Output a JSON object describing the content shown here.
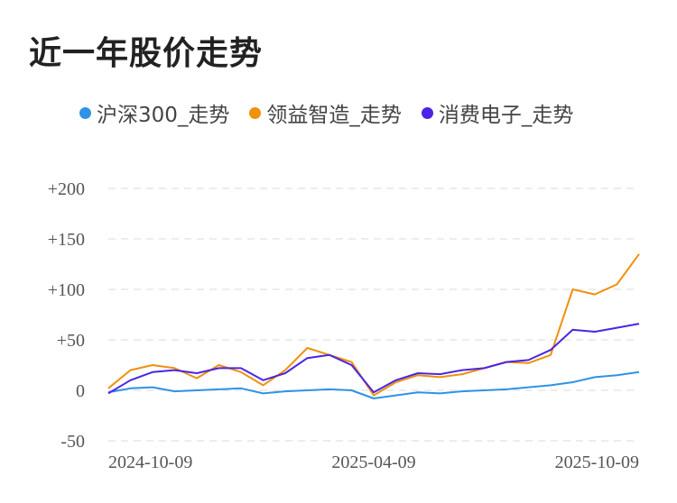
{
  "header": {
    "title": "近一年股价走势"
  },
  "chart_data": {
    "type": "line",
    "title": "近一年股价走势",
    "xlabel": "",
    "ylabel": "",
    "ylim": [
      -50,
      200
    ],
    "yticks": [
      200,
      150,
      100,
      50,
      0,
      -50
    ],
    "ytick_labels": [
      "+200",
      "+150",
      "+100",
      "+50",
      "0",
      "-50"
    ],
    "xticks": [
      "2024-10-09",
      "2025-04-09",
      "2025-10-09"
    ],
    "xtick_index": [
      0,
      12,
      24
    ],
    "grid": "horizontal-dashed",
    "legend_position": "top",
    "series": [
      {
        "name": "沪深300_走势",
        "color": "#2e93e6",
        "values": [
          -2,
          2,
          3,
          -1,
          0,
          1,
          2,
          -3,
          -1,
          0,
          1,
          0,
          -8,
          -5,
          -2,
          -3,
          -1,
          0,
          1,
          3,
          5,
          8,
          13,
          15,
          18
        ]
      },
      {
        "name": "领益智造_走势",
        "color": "#f0900b",
        "values": [
          2,
          20,
          25,
          22,
          12,
          25,
          18,
          5,
          20,
          42,
          35,
          28,
          -5,
          8,
          15,
          13,
          16,
          22,
          28,
          27,
          35,
          100,
          95,
          105,
          135
        ]
      },
      {
        "name": "消费电子_走势",
        "color": "#4b25e3",
        "values": [
          -3,
          10,
          18,
          20,
          17,
          22,
          22,
          10,
          17,
          32,
          35,
          25,
          -2,
          10,
          17,
          16,
          20,
          22,
          28,
          30,
          40,
          60,
          58,
          62,
          66
        ]
      }
    ]
  }
}
